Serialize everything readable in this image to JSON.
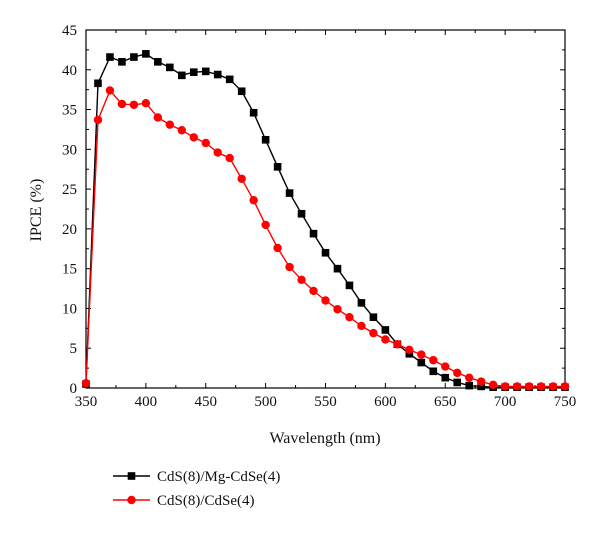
{
  "chart_data": {
    "type": "line",
    "title": "",
    "xlabel": "Wavelength (nm)",
    "ylabel": "IPCE (%)",
    "xlim": [
      350,
      750
    ],
    "ylim": [
      0,
      45
    ],
    "xticks": [
      350,
      400,
      450,
      500,
      550,
      600,
      650,
      700,
      750
    ],
    "yticks": [
      0,
      5,
      10,
      15,
      20,
      25,
      30,
      35,
      40,
      45
    ],
    "grid": false,
    "legend_position": "bottom-left, below plot",
    "series": [
      {
        "name": "CdS(8)/Mg-CdSe(4)",
        "color": "#000000",
        "marker": "square",
        "x": [
          350,
          360,
          370,
          380,
          390,
          400,
          410,
          420,
          430,
          440,
          450,
          460,
          470,
          480,
          490,
          500,
          510,
          520,
          530,
          540,
          550,
          560,
          570,
          580,
          590,
          600,
          610,
          620,
          630,
          640,
          650,
          660,
          670,
          680,
          690,
          700,
          710,
          720,
          730,
          740,
          750
        ],
        "y": [
          0.5,
          38.3,
          41.6,
          41.0,
          41.6,
          42.0,
          41.0,
          40.3,
          39.3,
          39.7,
          39.8,
          39.4,
          38.8,
          37.3,
          34.6,
          31.2,
          27.8,
          24.5,
          21.9,
          19.4,
          17.0,
          15.0,
          12.9,
          10.7,
          8.9,
          7.3,
          5.5,
          4.3,
          3.2,
          2.1,
          1.3,
          0.7,
          0.3,
          0.2,
          0.1,
          0.1,
          0.1,
          0.1,
          0.1,
          0.1,
          0.1
        ]
      },
      {
        "name": "CdS(8)/CdSe(4)",
        "color": "#ff0000",
        "marker": "circle",
        "x": [
          350,
          360,
          370,
          380,
          390,
          400,
          410,
          420,
          430,
          440,
          450,
          460,
          470,
          480,
          490,
          500,
          510,
          520,
          530,
          540,
          550,
          560,
          570,
          580,
          590,
          600,
          610,
          620,
          630,
          640,
          650,
          660,
          670,
          680,
          690,
          700,
          710,
          720,
          730,
          740,
          750
        ],
        "y": [
          0.6,
          33.7,
          37.4,
          35.7,
          35.6,
          35.8,
          34.0,
          33.1,
          32.4,
          31.5,
          30.8,
          29.6,
          28.9,
          26.3,
          23.6,
          20.5,
          17.6,
          15.2,
          13.6,
          12.2,
          11.0,
          9.9,
          8.9,
          7.8,
          6.9,
          6.1,
          5.5,
          4.8,
          4.2,
          3.5,
          2.7,
          1.9,
          1.3,
          0.8,
          0.4,
          0.2,
          0.2,
          0.2,
          0.2,
          0.2,
          0.2
        ]
      }
    ]
  }
}
